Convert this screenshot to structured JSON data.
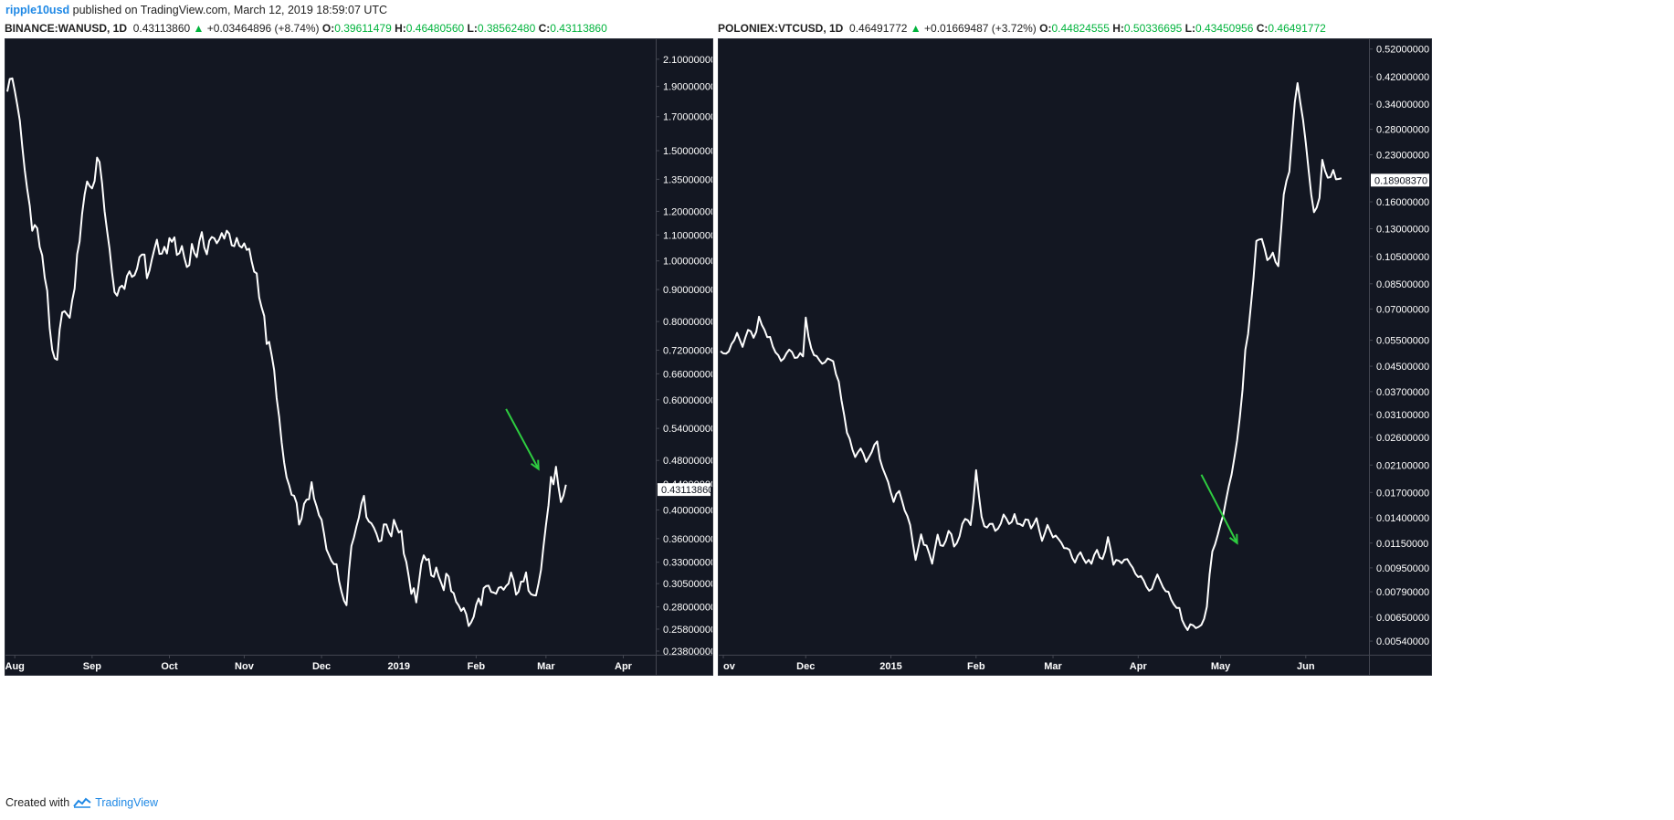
{
  "header": {
    "author": "ripple10usd",
    "published": " published on TradingView.com, March 12, 2019 18:59:07 UTC"
  },
  "footer": {
    "created_with": "Created with",
    "brand": "TradingView"
  },
  "colors": {
    "background": "#131722",
    "line": "#ffffff",
    "arrow": "#2ecc40",
    "up": "#00b33c",
    "brand": "#1e88e5"
  },
  "panels": [
    {
      "symbol": "BINANCE:WANUSD, 1D",
      "price": "0.43113860",
      "change": "+0.03464896 (+8.74%)",
      "open_label": "O:",
      "open": "0.39611479",
      "high_label": "H:",
      "high": "0.46480560",
      "low_label": "L:",
      "low": "0.38562480",
      "close_label": "C:",
      "close": "0.43113860",
      "last_price_label": "0.43113860"
    },
    {
      "symbol": "POLONIEX:VTCUSD, 1D",
      "price": "0.46491772",
      "change": "+0.01669487 (+3.72%)",
      "open_label": "O:",
      "open": "0.44824555",
      "high_label": "H:",
      "high": "0.50336695",
      "low_label": "L:",
      "low": "0.43450956",
      "close_label": "C:",
      "close": "0.46491772",
      "last_price_label": "0.18908370"
    }
  ],
  "chart_data": [
    {
      "type": "line",
      "scale": "log",
      "grid": false,
      "title": "BINANCE:WANUSD, 1D",
      "ylim": [
        0.238,
        2.2
      ],
      "x_ticks": [
        "Aug",
        "Sep",
        "Oct",
        "Nov",
        "Dec",
        "2019",
        "Feb",
        "Mar",
        "Apr"
      ],
      "x_tick_index": [
        3,
        34,
        65,
        95,
        126,
        157,
        188,
        216,
        247
      ],
      "y_ticks": [
        "2.10000000",
        "1.90000000",
        "1.70000000",
        "1.50000000",
        "1.35000000",
        "1.20000000",
        "1.10000000",
        "1.00000000",
        "0.90000000",
        "0.80000000",
        "0.72000000",
        "0.66000000",
        "0.60000000",
        "0.54000000",
        "0.48000000",
        "0.44000000",
        "0.40000000",
        "0.36000000",
        "0.33000000",
        "0.30500000",
        "0.28000000",
        "0.25800000",
        "0.23800000"
      ],
      "y_tick_values": [
        2.1,
        1.9,
        1.7,
        1.5,
        1.35,
        1.2,
        1.1,
        1.0,
        0.9,
        0.8,
        0.72,
        0.66,
        0.6,
        0.54,
        0.48,
        0.44,
        0.4,
        0.36,
        0.33,
        0.305,
        0.28,
        0.258,
        0.238
      ],
      "x_count": 260,
      "last_value": 0.4311386,
      "series": [
        {
          "keypoints": [
            [
              0,
              1.9
            ],
            [
              2,
              1.95
            ],
            [
              4,
              1.8
            ],
            [
              6,
              1.5
            ],
            [
              8,
              1.3
            ],
            [
              10,
              1.15
            ],
            [
              12,
              1.12
            ],
            [
              14,
              1.0
            ],
            [
              16,
              0.9
            ],
            [
              18,
              0.7
            ],
            [
              20,
              0.68
            ],
            [
              22,
              0.85
            ],
            [
              24,
              0.8
            ],
            [
              26,
              0.85
            ],
            [
              28,
              1.0
            ],
            [
              30,
              1.2
            ],
            [
              32,
              1.35
            ],
            [
              34,
              1.3
            ],
            [
              36,
              1.45
            ],
            [
              38,
              1.35
            ],
            [
              40,
              1.1
            ],
            [
              42,
              0.95
            ],
            [
              44,
              0.88
            ],
            [
              46,
              0.9
            ],
            [
              48,
              0.95
            ],
            [
              50,
              0.92
            ],
            [
              52,
              0.98
            ],
            [
              54,
              1.05
            ],
            [
              56,
              0.95
            ],
            [
              58,
              1.0
            ],
            [
              60,
              1.08
            ],
            [
              62,
              1.0
            ],
            [
              64,
              1.05
            ],
            [
              66,
              1.1
            ],
            [
              68,
              1.02
            ],
            [
              70,
              1.05
            ],
            [
              72,
              0.98
            ],
            [
              74,
              1.05
            ],
            [
              76,
              1.03
            ],
            [
              78,
              1.08
            ],
            [
              80,
              1.05
            ],
            [
              82,
              1.1
            ],
            [
              84,
              1.05
            ],
            [
              86,
              1.1
            ],
            [
              88,
              1.12
            ],
            [
              90,
              1.08
            ],
            [
              92,
              1.06
            ],
            [
              94,
              1.04
            ],
            [
              96,
              1.05
            ],
            [
              98,
              1.0
            ],
            [
              100,
              0.95
            ],
            [
              102,
              0.85
            ],
            [
              104,
              0.75
            ],
            [
              106,
              0.7
            ],
            [
              108,
              0.62
            ],
            [
              110,
              0.5
            ],
            [
              112,
              0.45
            ],
            [
              114,
              0.42
            ],
            [
              116,
              0.4
            ],
            [
              118,
              0.38
            ],
            [
              120,
              0.42
            ],
            [
              122,
              0.43
            ],
            [
              124,
              0.4
            ],
            [
              126,
              0.38
            ],
            [
              128,
              0.35
            ],
            [
              130,
              0.34
            ],
            [
              132,
              0.32
            ],
            [
              134,
              0.3
            ],
            [
              136,
              0.29
            ],
            [
              138,
              0.35
            ],
            [
              140,
              0.38
            ],
            [
              142,
              0.42
            ],
            [
              144,
              0.4
            ],
            [
              146,
              0.38
            ],
            [
              148,
              0.37
            ],
            [
              150,
              0.36
            ],
            [
              152,
              0.38
            ],
            [
              154,
              0.37
            ],
            [
              156,
              0.38
            ],
            [
              158,
              0.37
            ],
            [
              160,
              0.33
            ],
            [
              162,
              0.3
            ],
            [
              164,
              0.29
            ],
            [
              166,
              0.32
            ],
            [
              168,
              0.34
            ],
            [
              170,
              0.31
            ],
            [
              172,
              0.33
            ],
            [
              174,
              0.3
            ],
            [
              176,
              0.31
            ],
            [
              178,
              0.3
            ],
            [
              180,
              0.29
            ],
            [
              182,
              0.28
            ],
            [
              184,
              0.27
            ],
            [
              186,
              0.26
            ],
            [
              188,
              0.28
            ],
            [
              190,
              0.29
            ],
            [
              192,
              0.3
            ],
            [
              194,
              0.29
            ],
            [
              196,
              0.29
            ],
            [
              198,
              0.3
            ],
            [
              200,
              0.3
            ],
            [
              202,
              0.31
            ],
            [
              204,
              0.3
            ],
            [
              206,
              0.3
            ],
            [
              208,
              0.31
            ],
            [
              210,
              0.3
            ],
            [
              212,
              0.3
            ],
            [
              214,
              0.32
            ],
            [
              216,
              0.38
            ],
            [
              218,
              0.44
            ],
            [
              220,
              0.46
            ],
            [
              222,
              0.4
            ],
            [
              224,
              0.43
            ]
          ]
        }
      ],
      "annotation": {
        "type": "arrow",
        "from": [
          200,
          0.58
        ],
        "to": [
          213,
          0.465
        ]
      }
    },
    {
      "type": "line",
      "scale": "log",
      "grid": false,
      "title": "POLONIEX:VTCUSD, 1D",
      "ylim": [
        0.005,
        0.53
      ],
      "x_ticks": [
        "ov",
        "Dec",
        "2015",
        "Feb",
        "Mar",
        "Apr",
        "May",
        "Jun"
      ],
      "x_tick_index": [
        1,
        31,
        62,
        93,
        121,
        152,
        182,
        213
      ],
      "y_ticks": [
        "0.52000000",
        "0.42000000",
        "0.34000000",
        "0.28000000",
        "0.23000000",
        "0.16000000",
        "0.13000000",
        "0.10500000",
        "0.08500000",
        "0.07000000",
        "0.05500000",
        "0.04500000",
        "0.03700000",
        "0.03100000",
        "0.02600000",
        "0.02100000",
        "0.01700000",
        "0.01400000",
        "0.01150000",
        "0.00950000",
        "0.00790000",
        "0.00650000",
        "0.00540000"
      ],
      "y_tick_values": [
        0.52,
        0.42,
        0.34,
        0.28,
        0.23,
        0.16,
        0.13,
        0.105,
        0.085,
        0.07,
        0.055,
        0.045,
        0.037,
        0.031,
        0.026,
        0.021,
        0.017,
        0.014,
        0.0115,
        0.0095,
        0.0079,
        0.0065,
        0.0054
      ],
      "x_count": 236,
      "last_value": 0.1890837,
      "series": [
        {
          "keypoints": [
            [
              0,
              0.052
            ],
            [
              2,
              0.05
            ],
            [
              4,
              0.052
            ],
            [
              6,
              0.058
            ],
            [
              8,
              0.052
            ],
            [
              10,
              0.06
            ],
            [
              12,
              0.055
            ],
            [
              14,
              0.065
            ],
            [
              16,
              0.058
            ],
            [
              18,
              0.055
            ],
            [
              20,
              0.05
            ],
            [
              22,
              0.048
            ],
            [
              24,
              0.05
            ],
            [
              26,
              0.05
            ],
            [
              28,
              0.048
            ],
            [
              30,
              0.05
            ],
            [
              31,
              0.065
            ],
            [
              33,
              0.052
            ],
            [
              35,
              0.048
            ],
            [
              37,
              0.045
            ],
            [
              39,
              0.048
            ],
            [
              41,
              0.047
            ],
            [
              43,
              0.04
            ],
            [
              45,
              0.03
            ],
            [
              47,
              0.025
            ],
            [
              49,
              0.022
            ],
            [
              51,
              0.024
            ],
            [
              53,
              0.022
            ],
            [
              55,
              0.023
            ],
            [
              57,
              0.025
            ],
            [
              59,
              0.02
            ],
            [
              61,
              0.018
            ],
            [
              63,
              0.016
            ],
            [
              65,
              0.017
            ],
            [
              67,
              0.015
            ],
            [
              69,
              0.013
            ],
            [
              71,
              0.01
            ],
            [
              73,
              0.012
            ],
            [
              75,
              0.011
            ],
            [
              77,
              0.01
            ],
            [
              79,
              0.012
            ],
            [
              81,
              0.011
            ],
            [
              83,
              0.013
            ],
            [
              85,
              0.011
            ],
            [
              87,
              0.012
            ],
            [
              89,
              0.014
            ],
            [
              91,
              0.013
            ],
            [
              93,
              0.02
            ],
            [
              95,
              0.014
            ],
            [
              97,
              0.013
            ],
            [
              99,
              0.013
            ],
            [
              101,
              0.013
            ],
            [
              103,
              0.014
            ],
            [
              105,
              0.013
            ],
            [
              107,
              0.014
            ],
            [
              109,
              0.013
            ],
            [
              111,
              0.014
            ],
            [
              113,
              0.013
            ],
            [
              115,
              0.014
            ],
            [
              117,
              0.012
            ],
            [
              119,
              0.013
            ],
            [
              121,
              0.012
            ],
            [
              123,
              0.012
            ],
            [
              125,
              0.011
            ],
            [
              127,
              0.011
            ],
            [
              129,
              0.01
            ],
            [
              131,
              0.011
            ],
            [
              133,
              0.01
            ],
            [
              135,
              0.01
            ],
            [
              137,
              0.011
            ],
            [
              139,
              0.01
            ],
            [
              141,
              0.012
            ],
            [
              143,
              0.01
            ],
            [
              145,
              0.01
            ],
            [
              147,
              0.01
            ],
            [
              149,
              0.01
            ],
            [
              151,
              0.009
            ],
            [
              153,
              0.009
            ],
            [
              155,
              0.008
            ],
            [
              157,
              0.008
            ],
            [
              159,
              0.009
            ],
            [
              161,
              0.008
            ],
            [
              163,
              0.008
            ],
            [
              165,
              0.007
            ],
            [
              167,
              0.007
            ],
            [
              169,
              0.006
            ],
            [
              171,
              0.006
            ],
            [
              173,
              0.006
            ],
            [
              175,
              0.006
            ],
            [
              177,
              0.007
            ],
            [
              178,
              0.009
            ],
            [
              179,
              0.011
            ],
            [
              181,
              0.012
            ],
            [
              183,
              0.014
            ],
            [
              185,
              0.018
            ],
            [
              187,
              0.022
            ],
            [
              189,
              0.03
            ],
            [
              191,
              0.05
            ],
            [
              193,
              0.07
            ],
            [
              195,
              0.12
            ],
            [
              197,
              0.12
            ],
            [
              199,
              0.1
            ],
            [
              201,
              0.105
            ],
            [
              203,
              0.1
            ],
            [
              205,
              0.17
            ],
            [
              207,
              0.2
            ],
            [
              209,
              0.35
            ],
            [
              210,
              0.41
            ],
            [
              212,
              0.3
            ],
            [
              214,
              0.2
            ],
            [
              216,
              0.15
            ],
            [
              218,
              0.16
            ],
            [
              219,
              0.22
            ],
            [
              221,
              0.19
            ],
            [
              223,
              0.2
            ],
            [
              225,
              0.19
            ],
            [
              226,
              0.189
            ]
          ]
        }
      ],
      "annotation": {
        "type": "arrow",
        "from": [
          175,
          0.0195
        ],
        "to": [
          188,
          0.0115
        ]
      }
    }
  ]
}
